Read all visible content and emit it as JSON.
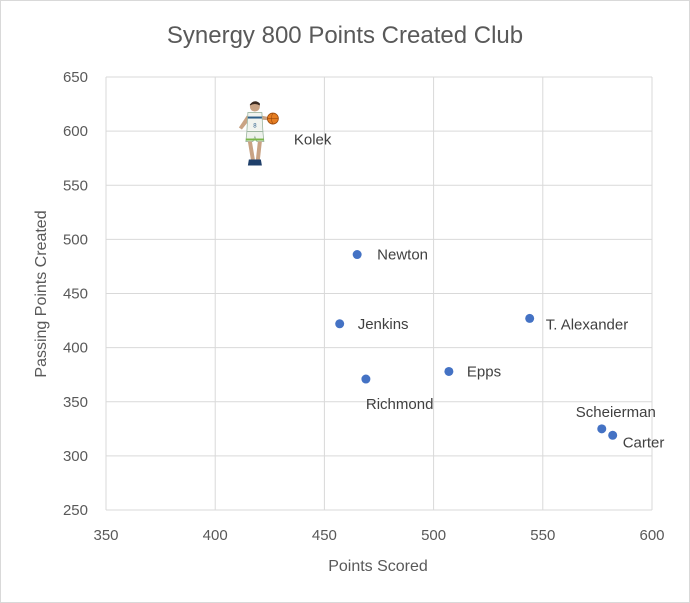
{
  "chart_data": {
    "type": "scatter",
    "title": "Synergy 800 Points Created Club",
    "xlabel": "Points Scored",
    "ylabel": "Passing Points Created",
    "xlim": [
      350,
      600
    ],
    "ylim": [
      250,
      650
    ],
    "x_ticks": [
      350,
      400,
      450,
      500,
      550,
      600
    ],
    "y_ticks": [
      250,
      300,
      350,
      400,
      450,
      500,
      550,
      600,
      650
    ],
    "grid": true,
    "marker_color": "#4472C4",
    "points": [
      {
        "label": "Newton",
        "x": 465,
        "y": 486
      },
      {
        "label": "Jenkins",
        "x": 457,
        "y": 422
      },
      {
        "label": "T. Alexander",
        "x": 544,
        "y": 427
      },
      {
        "label": "Epps",
        "x": 507,
        "y": 378
      },
      {
        "label": "Richmond",
        "x": 469,
        "y": 371
      },
      {
        "label": "Scheierman",
        "x": 577,
        "y": 325
      },
      {
        "label": "Carter",
        "x": 582,
        "y": 319
      }
    ],
    "image_point": {
      "label": "Kolek",
      "x": 420,
      "y": 595,
      "icon": "basketball-player-icon"
    }
  }
}
